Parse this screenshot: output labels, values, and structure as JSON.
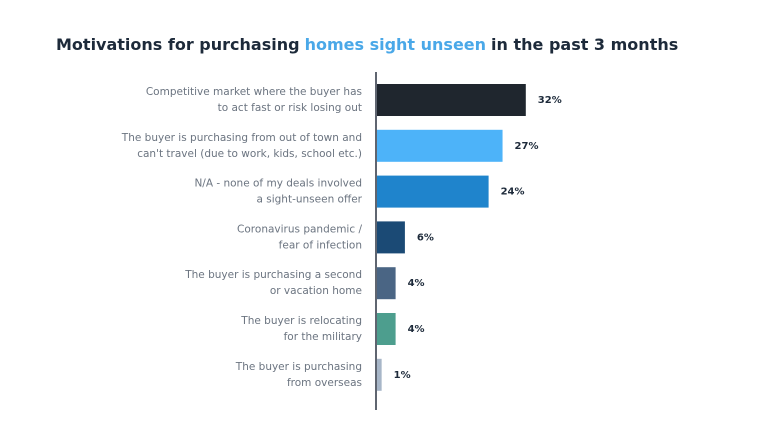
{
  "chart_data": {
    "type": "hbar",
    "title": [
      "Motivations for purchasing",
      "homes sight unseen",
      "in the past 3 months"
    ],
    "title_colors": [
      "#1d2a3a",
      "#4aa8e8",
      "#1d2a3a"
    ],
    "categories": [
      [
        "Competitive market where the buyer has",
        "to act fast or risk losing out"
      ],
      [
        "The buyer is purchasing from out of town and",
        "can't travel (due to work, kids, school etc.)"
      ],
      [
        "N/A - none of my deals involved",
        "a sight-unseen offer"
      ],
      [
        "Coronavirus pandemic /",
        "fear of infection"
      ],
      [
        "The buyer is purchasing a second",
        "or vacation home"
      ],
      [
        "The buyer is relocating",
        "for the military"
      ],
      [
        "The buyer is purchasing",
        "from overseas"
      ]
    ],
    "values": [
      32,
      27,
      24,
      6,
      4,
      4,
      1
    ],
    "value_labels": [
      "32%",
      "27%",
      "24%",
      "6%",
      "4%",
      "4%",
      "1%"
    ],
    "colors": [
      "#1f262e",
      "#4db3f9",
      "#1f84cc",
      "#1b4a75",
      "#4a6584",
      "#4d9e8e",
      "#a7b6c8"
    ]
  }
}
